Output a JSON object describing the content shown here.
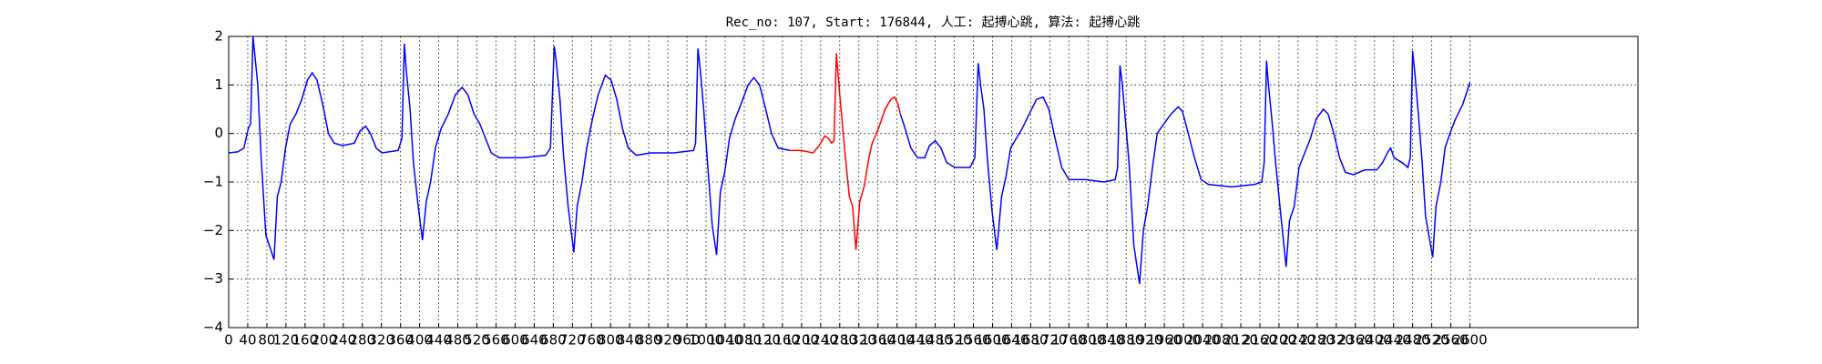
{
  "chart_data": {
    "type": "line",
    "title": "Rec_no: 107, Start: 176844, 人工: 起搏心跳, 算法: 起搏心跳",
    "xlim": [
      0,
      2952
    ],
    "ylim": [
      -4,
      2
    ],
    "xticks": [
      0,
      40,
      80,
      120,
      160,
      200,
      240,
      280,
      320,
      360,
      400,
      440,
      480,
      520,
      560,
      600,
      640,
      680,
      720,
      760,
      800,
      840,
      880,
      920,
      960,
      1000,
      1040,
      1080,
      1120,
      1160,
      1200,
      1240,
      1280,
      1320,
      1360,
      1400,
      1440,
      1480,
      1520,
      1560,
      1600,
      1640,
      1680,
      1720,
      1760,
      1800,
      1840,
      1880,
      1920,
      1960,
      2000,
      2040,
      2080,
      2120,
      2160,
      2200,
      2240,
      2280,
      2320,
      2360,
      2400,
      2440,
      2480,
      2520,
      2560,
      2600
    ],
    "yticks": [
      {
        "value": -4,
        "label": "−4"
      },
      {
        "value": -3,
        "label": "−3"
      },
      {
        "value": -2,
        "label": "−2"
      },
      {
        "value": -1,
        "label": "−1"
      },
      0,
      1,
      2
    ],
    "grid": true,
    "series": [
      {
        "color": "#0000ff",
        "x": [
          0,
          19,
          32,
          41,
          46,
          51,
          56,
          61,
          68,
          78,
          85,
          95,
          102,
          110,
          119,
          129,
          141,
          153,
          165,
          175,
          185,
          197,
          209,
          221,
          239,
          263,
          275,
          287,
          297,
          309,
          321,
          355,
          363,
          368,
          372,
          380,
          387,
          397,
          406,
          414,
          423,
          433,
          445,
          460,
          475,
          489,
          501,
          514,
          526,
          538,
          550,
          567,
          616,
          664,
          674,
          682,
          686,
          694,
          701,
          711,
          723,
          730,
          740,
          750,
          762,
          774,
          789,
          801,
          813,
          825,
          837,
          854,
          884,
          932,
          974,
          978,
          983,
          988,
          995,
          1003,
          1013,
          1022,
          1030,
          1039,
          1049,
          1061,
          1073,
          1088,
          1100,
          1112,
          1125,
          1137,
          1151,
          1176
        ],
        "values": [
          -0.4,
          -0.38,
          -0.3,
          0.1,
          0.2,
          2.0,
          1.5,
          1.0,
          -0.5,
          -2.1,
          -2.3,
          -2.6,
          -1.3,
          -1.0,
          -0.3,
          0.2,
          0.4,
          0.7,
          1.1,
          1.25,
          1.1,
          0.6,
          0,
          -0.2,
          -0.25,
          -0.2,
          0.05,
          0.15,
          0,
          -0.3,
          -0.4,
          -0.35,
          -0.1,
          1.85,
          1.3,
          0.5,
          -0.6,
          -1.5,
          -2.2,
          -1.4,
          -1.0,
          -0.3,
          0.1,
          0.4,
          0.8,
          0.95,
          0.8,
          0.4,
          0.2,
          -0.1,
          -0.4,
          -0.5,
          -0.5,
          -0.45,
          -0.3,
          1.8,
          1.5,
          0.7,
          -0.4,
          -1.5,
          -2.45,
          -1.5,
          -1.0,
          -0.3,
          0.3,
          0.8,
          1.2,
          1.1,
          0.7,
          0.1,
          -0.3,
          -0.45,
          -0.4,
          -0.4,
          -0.35,
          -0.2,
          1.75,
          1.3,
          0.5,
          -0.6,
          -1.9,
          -2.5,
          -1.2,
          -0.8,
          -0.1,
          0.3,
          0.6,
          1.0,
          1.15,
          1.0,
          0.5,
          0,
          -0.3,
          -0.35
        ]
      },
      {
        "color": "#ff0000",
        "x": [
          1176,
          1200,
          1224,
          1237,
          1249,
          1256,
          1263,
          1268,
          1273,
          1280,
          1290,
          1300,
          1307,
          1314,
          1322,
          1331,
          1341,
          1348,
          1361,
          1375,
          1387,
          1395,
          1402,
          1407
        ],
        "values": [
          -0.35,
          -0.35,
          -0.4,
          -0.25,
          -0.05,
          -0.1,
          -0.2,
          -0.15,
          1.65,
          0.8,
          -0.3,
          -1.3,
          -1.5,
          -2.4,
          -1.4,
          -1.1,
          -0.5,
          -0.2,
          0.1,
          0.5,
          0.7,
          0.75,
          0.6,
          0.4
        ]
      },
      {
        "color": "#0000ff",
        "x": [
          1407,
          1417,
          1429,
          1443,
          1458,
          1468,
          1480,
          1492,
          1504,
          1521,
          1553,
          1563,
          1570,
          1575,
          1582,
          1589,
          1599,
          1609,
          1619,
          1628,
          1638,
          1650,
          1662,
          1677,
          1692,
          1706,
          1718,
          1731,
          1745,
          1760,
          1796,
          1833,
          1857,
          1862,
          1867,
          1872,
          1879,
          1886,
          1896,
          1908,
          1916,
          1925,
          1935,
          1945,
          1959,
          1974,
          1989,
          1998,
          2010,
          2023,
          2037,
          2052,
          2101,
          2149,
          2164,
          2169,
          2174,
          2178,
          2186,
          2193,
          2203,
          2215,
          2222,
          2232,
          2242,
          2254,
          2266,
          2278,
          2293,
          2303,
          2315,
          2327,
          2339,
          2356,
          2380,
          2405,
          2417,
          2427,
          2434,
          2441,
          2458,
          2470,
          2475,
          2480,
          2485,
          2492,
          2500,
          2507,
          2522,
          2529,
          2539,
          2548,
          2558,
          2570,
          2585,
          2600
        ],
        "values": [
          0.4,
          0.1,
          -0.3,
          -0.5,
          -0.5,
          -0.25,
          -0.15,
          -0.3,
          -0.6,
          -0.7,
          -0.7,
          -0.5,
          1.45,
          1.0,
          0.5,
          -0.5,
          -1.6,
          -2.4,
          -1.3,
          -0.9,
          -0.3,
          -0.1,
          0.1,
          0.4,
          0.7,
          0.75,
          0.5,
          -0.1,
          -0.7,
          -0.95,
          -0.95,
          -1.0,
          -0.95,
          -0.7,
          1.4,
          1.0,
          0.2,
          -0.6,
          -2.3,
          -3.1,
          -2.0,
          -1.5,
          -0.7,
          0,
          0.2,
          0.4,
          0.55,
          0.45,
          0,
          -0.5,
          -0.95,
          -1.05,
          -1.1,
          -1.05,
          -1.0,
          -0.6,
          1.5,
          1.0,
          0.2,
          -0.6,
          -1.6,
          -2.75,
          -1.8,
          -1.5,
          -0.7,
          -0.4,
          -0.1,
          0.3,
          0.5,
          0.4,
          0,
          -0.5,
          -0.8,
          -0.85,
          -0.75,
          -0.75,
          -0.6,
          -0.4,
          -0.3,
          -0.5,
          -0.6,
          -0.7,
          -0.5,
          1.7,
          1.2,
          0.4,
          -0.6,
          -1.7,
          -2.55,
          -1.5,
          -1.0,
          -0.3,
          0,
          0.3,
          0.6,
          1.05
        ]
      }
    ]
  }
}
